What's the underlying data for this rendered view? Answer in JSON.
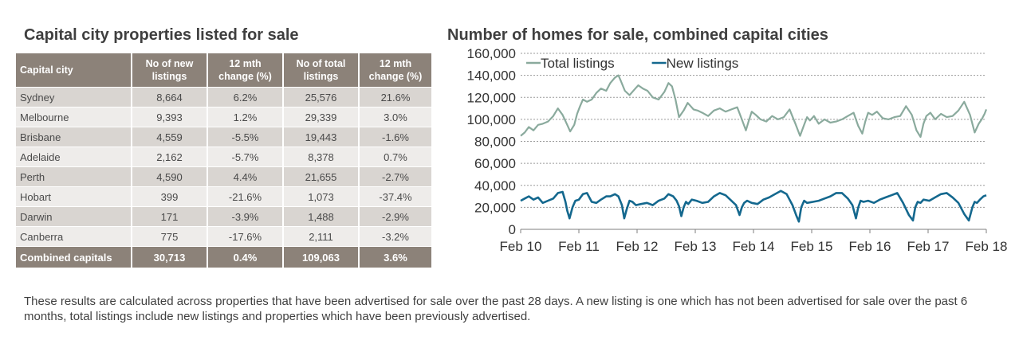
{
  "table": {
    "title": "Capital city properties listed for sale",
    "headers": [
      "Capital city",
      "No of new listings",
      "12 mth change (%)",
      "No of total listings",
      "12 mth change (%)"
    ],
    "rows": [
      [
        "Sydney",
        "8,664",
        "6.2%",
        "25,576",
        "21.6%"
      ],
      [
        "Melbourne",
        "9,393",
        "1.2%",
        "29,339",
        "3.0%"
      ],
      [
        "Brisbane",
        "4,559",
        "-5.5%",
        "19,443",
        "-1.6%"
      ],
      [
        "Adelaide",
        "2,162",
        "-5.7%",
        "8,378",
        "0.7%"
      ],
      [
        "Perth",
        "4,590",
        "4.4%",
        "21,655",
        "-2.7%"
      ],
      [
        "Hobart",
        "399",
        "-21.6%",
        "1,073",
        "-37.4%"
      ],
      [
        "Darwin",
        "171",
        "-3.9%",
        "1,488",
        "-2.9%"
      ],
      [
        "Canberra",
        "775",
        "-17.6%",
        "2,111",
        "-3.2%"
      ]
    ],
    "total": [
      "Combined capitals",
      "30,713",
      "0.4%",
      "109,063",
      "3.6%"
    ]
  },
  "colors": {
    "total_line": "#8aaa9d",
    "new_line": "#14688e",
    "header_bg": "#8c8279"
  },
  "chart_data": {
    "type": "line",
    "title": "Number of homes for sale, combined capital cities",
    "xlabel": "",
    "ylabel": "",
    "ylim": [
      0,
      160000
    ],
    "yticks": [
      0,
      20000,
      40000,
      60000,
      80000,
      100000,
      120000,
      140000,
      160000
    ],
    "ytick_labels": [
      "0",
      "20,000",
      "40,000",
      "60,000",
      "80,000",
      "100,000",
      "120,000",
      "140,000",
      "160,000"
    ],
    "xlim": [
      2010.08,
      2018.08
    ],
    "xticks": [
      2010.08,
      2011.08,
      2012.08,
      2013.08,
      2014.08,
      2015.08,
      2016.08,
      2017.08,
      2018.08
    ],
    "xtick_labels": [
      "Feb 10",
      "Feb 11",
      "Feb 12",
      "Feb 13",
      "Feb 14",
      "Feb 15",
      "Feb 16",
      "Feb 17",
      "Feb 18"
    ],
    "grid": true,
    "legend_position": "top-left",
    "series": [
      {
        "name": "Total listings",
        "x": [
          2010.08,
          2010.15,
          2010.22,
          2010.3,
          2010.38,
          2010.46,
          2010.55,
          2010.64,
          2010.72,
          2010.8,
          2010.88,
          2010.93,
          2011.0,
          2011.05,
          2011.1,
          2011.15,
          2011.22,
          2011.3,
          2011.38,
          2011.46,
          2011.55,
          2011.62,
          2011.7,
          2011.76,
          2011.8,
          2011.87,
          2011.95,
          2012.0,
          2012.05,
          2012.1,
          2012.18,
          2012.26,
          2012.35,
          2012.45,
          2012.55,
          2012.62,
          2012.68,
          2012.74,
          2012.8,
          2012.88,
          2012.95,
          2013.0,
          2013.05,
          2013.12,
          2013.2,
          2013.3,
          2013.4,
          2013.5,
          2013.6,
          2013.7,
          2013.8,
          2013.88,
          2013.95,
          2014.0,
          2014.05,
          2014.12,
          2014.2,
          2014.3,
          2014.4,
          2014.5,
          2014.6,
          2014.7,
          2014.8,
          2014.88,
          2014.95,
          2015.0,
          2015.05,
          2015.12,
          2015.2,
          2015.3,
          2015.4,
          2015.5,
          2015.6,
          2015.7,
          2015.8,
          2015.88,
          2015.95,
          2016.0,
          2016.05,
          2016.12,
          2016.2,
          2016.3,
          2016.4,
          2016.5,
          2016.6,
          2016.7,
          2016.8,
          2016.88,
          2016.95,
          2017.0,
          2017.05,
          2017.12,
          2017.2,
          2017.3,
          2017.4,
          2017.5,
          2017.6,
          2017.7,
          2017.8,
          2017.88,
          2017.95,
          2018.0,
          2018.05,
          2018.08
        ],
        "values": [
          85000,
          88000,
          93000,
          90000,
          95000,
          96000,
          98000,
          103000,
          110000,
          104000,
          95000,
          89000,
          95000,
          105000,
          112000,
          118000,
          116000,
          118000,
          124000,
          128000,
          126000,
          133000,
          138000,
          140000,
          135000,
          126000,
          122000,
          125000,
          128000,
          131000,
          128000,
          126000,
          120000,
          118000,
          125000,
          133000,
          130000,
          118000,
          102000,
          108000,
          115000,
          112000,
          109000,
          108000,
          106000,
          103000,
          108000,
          110000,
          107000,
          109000,
          111000,
          100000,
          90000,
          99000,
          107000,
          104000,
          100000,
          98000,
          103000,
          100000,
          102000,
          109000,
          96000,
          85000,
          95000,
          102000,
          99000,
          103000,
          96000,
          100000,
          97000,
          98000,
          100000,
          103000,
          106000,
          94000,
          87000,
          98000,
          106000,
          104000,
          107000,
          101000,
          100000,
          102000,
          103000,
          112000,
          104000,
          90000,
          84000,
          96000,
          103000,
          106000,
          100000,
          105000,
          102000,
          103000,
          108000,
          116000,
          104000,
          88000,
          96000,
          100000,
          105000,
          109000
        ]
      },
      {
        "name": "New listings",
        "x": [
          2010.08,
          2010.15,
          2010.22,
          2010.3,
          2010.38,
          2010.46,
          2010.55,
          2010.64,
          2010.72,
          2010.8,
          2010.85,
          2010.88,
          2010.92,
          2010.97,
          2011.02,
          2011.08,
          2011.15,
          2011.22,
          2011.3,
          2011.38,
          2011.46,
          2011.55,
          2011.62,
          2011.7,
          2011.76,
          2011.82,
          2011.86,
          2011.9,
          2011.95,
          2012.0,
          2012.06,
          2012.15,
          2012.25,
          2012.35,
          2012.45,
          2012.55,
          2012.62,
          2012.7,
          2012.76,
          2012.8,
          2012.84,
          2012.88,
          2012.92,
          2012.96,
          2013.02,
          2013.1,
          2013.2,
          2013.3,
          2013.4,
          2013.5,
          2013.6,
          2013.7,
          2013.78,
          2013.84,
          2013.88,
          2013.92,
          2013.97,
          2014.05,
          2014.15,
          2014.25,
          2014.35,
          2014.45,
          2014.55,
          2014.65,
          2014.75,
          2014.82,
          2014.86,
          2014.9,
          2014.95,
          2015.0,
          2015.1,
          2015.2,
          2015.3,
          2015.4,
          2015.5,
          2015.6,
          2015.7,
          2015.78,
          2015.84,
          2015.88,
          2015.92,
          2015.97,
          2016.05,
          2016.15,
          2016.25,
          2016.35,
          2016.45,
          2016.55,
          2016.65,
          2016.75,
          2016.82,
          2016.86,
          2016.9,
          2016.95,
          2017.0,
          2017.1,
          2017.2,
          2017.3,
          2017.4,
          2017.5,
          2017.6,
          2017.7,
          2017.78,
          2017.84,
          2017.88,
          2017.92,
          2017.97,
          2018.03,
          2018.08
        ],
        "values": [
          26000,
          28000,
          30000,
          27000,
          29000,
          24000,
          26000,
          28000,
          33000,
          34000,
          25000,
          17000,
          10000,
          20000,
          26000,
          27000,
          32000,
          33000,
          25000,
          24000,
          27000,
          30000,
          30000,
          32000,
          30000,
          22000,
          10000,
          18000,
          26000,
          25000,
          22000,
          23000,
          24000,
          22000,
          26000,
          28000,
          32000,
          30000,
          26000,
          21000,
          12000,
          20000,
          25000,
          23000,
          27000,
          26000,
          24000,
          25000,
          30000,
          33000,
          31000,
          26000,
          22000,
          13000,
          20000,
          24000,
          26000,
          24000,
          23000,
          27000,
          29000,
          32000,
          35000,
          32000,
          22000,
          12000,
          7000,
          20000,
          26000,
          24000,
          25000,
          26000,
          28000,
          30000,
          33000,
          33000,
          28000,
          22000,
          10000,
          20000,
          26000,
          25000,
          26000,
          24000,
          27000,
          29000,
          31000,
          33000,
          24000,
          13000,
          8000,
          20000,
          25000,
          24000,
          27000,
          26000,
          29000,
          32000,
          33000,
          29000,
          24000,
          14000,
          8000,
          20000,
          25000,
          24000,
          27000,
          30000,
          31000
        ]
      }
    ]
  },
  "footnote": "These results are calculated across properties that have been advertised for sale over the past 28 days.  A new listing is one which has not been advertised for sale over the past 6 months, total listings include new listings and properties which have been previously advertised."
}
